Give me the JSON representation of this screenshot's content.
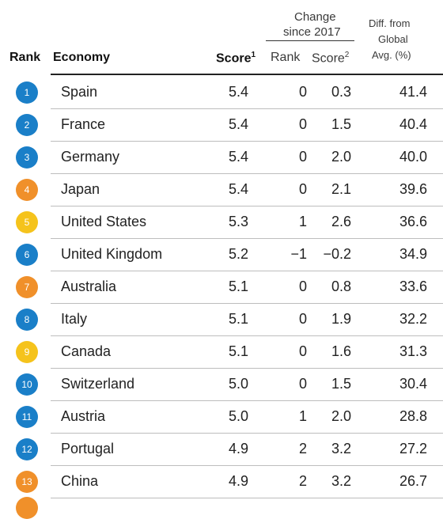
{
  "header": {
    "rank": "Rank",
    "economy": "Economy",
    "score": "Score",
    "score_sup": "1",
    "change_group": "Change",
    "change_group_line2": "since 2017",
    "change_rank": "Rank",
    "change_score": "Score",
    "change_score_sup": "2",
    "diff_line1": "Diff. from",
    "diff_line2": "Global",
    "diff_line3": "Avg. (%)"
  },
  "colors": {
    "blue": "#1a7fc8",
    "orange": "#f0902a",
    "yellow": "#f5c31c"
  },
  "rows": [
    {
      "rank": "1",
      "economy": "Spain",
      "score": "5.4",
      "change_rank": "0",
      "change_score": "0.3",
      "diff": "41.4",
      "color": "#1a7fc8"
    },
    {
      "rank": "2",
      "economy": "France",
      "score": "5.4",
      "change_rank": "0",
      "change_score": "1.5",
      "diff": "40.4",
      "color": "#1a7fc8"
    },
    {
      "rank": "3",
      "economy": "Germany",
      "score": "5.4",
      "change_rank": "0",
      "change_score": "2.0",
      "diff": "40.0",
      "color": "#1a7fc8"
    },
    {
      "rank": "4",
      "economy": "Japan",
      "score": "5.4",
      "change_rank": "0",
      "change_score": "2.1",
      "diff": "39.6",
      "color": "#f0902a"
    },
    {
      "rank": "5",
      "economy": "United States",
      "score": "5.3",
      "change_rank": "1",
      "change_score": "2.6",
      "diff": "36.6",
      "color": "#f5c31c"
    },
    {
      "rank": "6",
      "economy": "United Kingdom",
      "score": "5.2",
      "change_rank": "−1",
      "change_score": "−0.2",
      "diff": "34.9",
      "color": "#1a7fc8"
    },
    {
      "rank": "7",
      "economy": "Australia",
      "score": "5.1",
      "change_rank": "0",
      "change_score": "0.8",
      "diff": "33.6",
      "color": "#f0902a"
    },
    {
      "rank": "8",
      "economy": "Italy",
      "score": "5.1",
      "change_rank": "0",
      "change_score": "1.9",
      "diff": "32.2",
      "color": "#1a7fc8"
    },
    {
      "rank": "9",
      "economy": "Canada",
      "score": "5.1",
      "change_rank": "0",
      "change_score": "1.6",
      "diff": "31.3",
      "color": "#f5c31c"
    },
    {
      "rank": "10",
      "economy": "Switzerland",
      "score": "5.0",
      "change_rank": "0",
      "change_score": "1.5",
      "diff": "30.4",
      "color": "#1a7fc8"
    },
    {
      "rank": "11",
      "economy": "Austria",
      "score": "5.0",
      "change_rank": "1",
      "change_score": "2.0",
      "diff": "28.8",
      "color": "#1a7fc8"
    },
    {
      "rank": "12",
      "economy": "Portugal",
      "score": "4.9",
      "change_rank": "2",
      "change_score": "3.2",
      "diff": "27.2",
      "color": "#1a7fc8"
    },
    {
      "rank": "13",
      "economy": "China",
      "score": "4.9",
      "change_rank": "2",
      "change_score": "3.2",
      "diff": "26.7",
      "color": "#f0902a"
    }
  ]
}
